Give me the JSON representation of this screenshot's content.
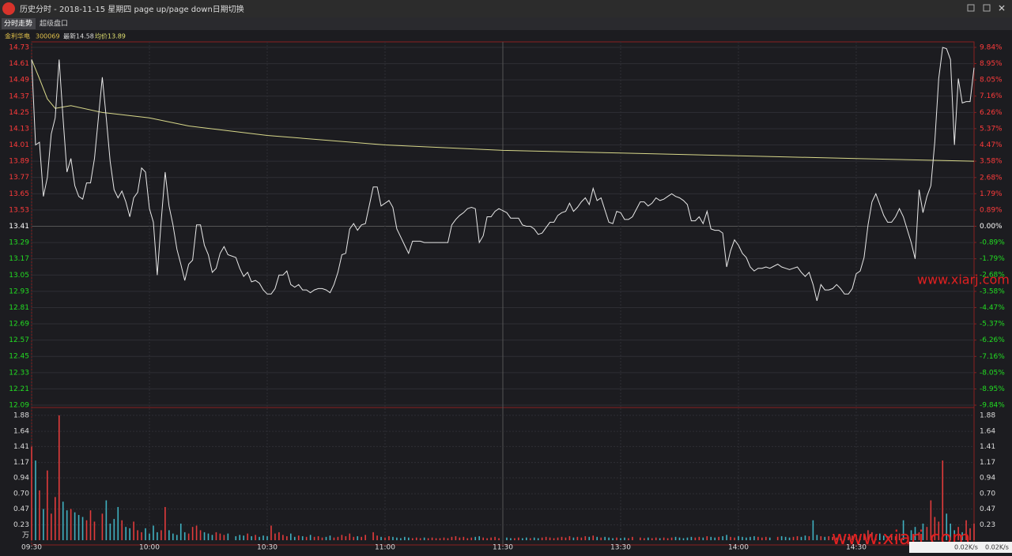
{
  "window": {
    "title": "历史分时 - 2018-11-15 星期四 page up/page down日期切换",
    "tabs": [
      "分时走势",
      "超级盘口"
    ],
    "info": [
      "金利华电",
      "300069",
      "最新14.58",
      "均价13.89"
    ],
    "watermarks": [
      "www.xiarj.com",
      "www.xiarj.com"
    ],
    "net_speed": [
      "0.02K/s",
      "0.02K/s"
    ]
  },
  "chart_data": {
    "type": "line",
    "x": [
      0,
      1,
      2,
      3,
      4,
      5,
      6,
      7,
      8,
      9,
      10,
      11,
      12,
      13,
      14,
      15,
      16,
      18,
      19,
      20,
      21,
      22,
      23,
      24,
      25,
      26,
      27,
      28,
      29,
      30,
      31,
      32,
      33,
      34,
      35,
      36,
      37,
      38,
      39,
      40,
      41,
      42,
      43,
      44,
      45,
      46,
      47,
      48,
      49,
      50,
      52,
      53,
      54,
      55,
      56,
      57,
      58,
      59,
      60,
      61,
      62,
      63,
      64,
      65,
      66,
      67,
      68,
      69,
      70,
      71,
      72,
      73,
      74,
      75,
      76,
      77,
      78,
      79,
      80,
      81,
      82,
      83,
      84,
      85,
      87,
      88,
      89,
      90,
      91,
      92,
      93,
      94,
      95,
      96,
      97,
      98,
      99,
      100,
      101,
      102,
      103,
      104,
      105,
      106,
      107,
      108,
      109,
      110,
      111,
      112,
      113,
      114,
      115,
      116,
      117,
      118,
      119,
      121,
      122,
      123,
      124,
      125,
      126,
      127,
      128,
      129,
      130,
      131,
      132,
      133,
      134,
      135,
      136,
      137,
      138,
      139,
      140,
      141,
      142,
      143,
      144,
      145,
      146,
      147,
      148,
      149,
      150,
      151,
      152,
      153,
      155,
      156,
      157,
      158,
      159,
      160,
      161,
      162,
      163,
      164,
      165,
      166,
      167,
      168,
      169,
      170,
      171,
      172,
      173,
      174,
      175,
      176,
      177,
      178,
      179,
      180,
      181,
      182,
      183,
      184,
      185,
      186,
      187,
      188,
      190,
      191,
      192,
      193,
      194,
      195,
      196,
      197,
      198,
      199,
      200,
      201,
      202,
      203,
      204,
      205,
      206,
      207,
      208,
      209,
      210,
      211,
      212,
      213,
      214,
      215,
      216,
      217,
      218,
      219,
      220,
      221,
      222,
      224,
      225,
      226,
      227,
      228,
      229,
      230,
      231,
      232,
      233,
      234,
      235,
      236,
      237,
      238,
      239,
      240
    ],
    "series": [
      {
        "name": "价格",
        "color": "#e8e8e8",
        "values": [
          14.64,
          14.01,
          14.03,
          13.63,
          13.77,
          14.09,
          14.21,
          14.64,
          14.21,
          13.81,
          13.91,
          13.71,
          13.63,
          13.61,
          13.73,
          13.73,
          13.91,
          14.51,
          14.21,
          13.89,
          13.68,
          13.62,
          13.67,
          13.59,
          13.48,
          13.62,
          13.66,
          13.84,
          13.81,
          13.54,
          13.44,
          13.05,
          13.45,
          13.81,
          13.56,
          13.42,
          13.24,
          13.13,
          13.01,
          13.13,
          13.16,
          13.42,
          13.42,
          13.27,
          13.2,
          13.07,
          13.1,
          13.21,
          13.26,
          13.2,
          13.18,
          13.1,
          13.04,
          13.07,
          13.0,
          13.01,
          12.99,
          12.94,
          12.91,
          12.91,
          12.95,
          13.05,
          13.05,
          13.08,
          12.98,
          12.96,
          12.98,
          12.94,
          12.94,
          12.92,
          12.94,
          12.95,
          12.95,
          12.94,
          12.92,
          12.98,
          13.07,
          13.2,
          13.21,
          13.39,
          13.43,
          13.38,
          13.42,
          13.43,
          13.7,
          13.7,
          13.56,
          13.58,
          13.6,
          13.55,
          13.39,
          13.33,
          13.27,
          13.21,
          13.3,
          13.3,
          13.3,
          13.29,
          13.29,
          13.29,
          13.29,
          13.29,
          13.29,
          13.29,
          13.42,
          13.46,
          13.49,
          13.51,
          13.54,
          13.55,
          13.54,
          13.29,
          13.34,
          13.48,
          13.48,
          13.52,
          13.54,
          13.51,
          13.47,
          13.47,
          13.47,
          13.42,
          13.41,
          13.41,
          13.39,
          13.35,
          13.36,
          13.4,
          13.44,
          13.44,
          13.49,
          13.51,
          13.52,
          13.58,
          13.52,
          13.55,
          13.59,
          13.62,
          13.57,
          13.69,
          13.6,
          13.62,
          13.53,
          13.44,
          13.43,
          13.52,
          13.51,
          13.46,
          13.46,
          13.48,
          13.59,
          13.59,
          13.56,
          13.58,
          13.62,
          13.6,
          13.61,
          13.63,
          13.65,
          13.63,
          13.62,
          13.6,
          13.57,
          13.45,
          13.45,
          13.48,
          13.43,
          13.52,
          13.39,
          13.38,
          13.38,
          13.36,
          13.11,
          13.23,
          13.31,
          13.27,
          13.21,
          13.18,
          13.11,
          13.08,
          13.1,
          13.1,
          13.11,
          13.1,
          13.13,
          13.11,
          13.1,
          13.09,
          13.1,
          13.11,
          13.07,
          13.04,
          13.07,
          12.98,
          12.86,
          12.98,
          12.94,
          12.94,
          12.95,
          12.98,
          12.95,
          12.91,
          12.91,
          12.95,
          13.06,
          13.08,
          13.18,
          13.42,
          13.59,
          13.65,
          13.57,
          13.49,
          13.44,
          13.44,
          13.48,
          13.54,
          13.48,
          13.29,
          13.17,
          13.68,
          13.51,
          13.63,
          13.71,
          14.03,
          14.5,
          14.73,
          14.72,
          14.64,
          14.01,
          14.5,
          14.32,
          14.33,
          14.33,
          14.58
        ]
      },
      {
        "name": "均价",
        "color": "#d8d88a",
        "x": [
          0,
          2,
          4,
          6,
          10,
          18,
          30,
          40,
          60,
          90,
          120,
          150,
          180,
          210,
          240
        ],
        "values": [
          14.64,
          14.5,
          14.35,
          14.28,
          14.3,
          14.25,
          14.21,
          14.15,
          14.08,
          14.01,
          13.97,
          13.95,
          13.93,
          13.91,
          13.89
        ]
      }
    ],
    "baseline": 13.41,
    "ylim": [
      12.09,
      14.73
    ],
    "yticks": [
      14.73,
      14.61,
      14.49,
      14.37,
      14.25,
      14.13,
      14.01,
      13.89,
      13.77,
      13.65,
      13.53,
      13.41,
      13.29,
      13.17,
      13.05,
      12.93,
      12.81,
      12.69,
      12.57,
      12.45,
      12.33,
      12.21,
      12.09
    ],
    "y2lim": [
      -9.84,
      9.84
    ],
    "y2ticks": [
      {
        "value": 9.84,
        "label": "9.84%"
      },
      {
        "value": 8.95,
        "label": "8.95%"
      },
      {
        "value": 8.05,
        "label": "8.05%"
      },
      {
        "value": 7.16,
        "label": "7.16%"
      },
      {
        "value": 6.26,
        "label": "6.26%"
      },
      {
        "value": 5.37,
        "label": "5.37%"
      },
      {
        "value": 4.47,
        "label": "4.47%"
      },
      {
        "value": 3.58,
        "label": "3.58%"
      },
      {
        "value": 2.68,
        "label": "2.68%"
      },
      {
        "value": 1.79,
        "label": "1.79%"
      },
      {
        "value": 0.89,
        "label": "0.89%"
      },
      {
        "value": 0,
        "label": "0.00%"
      },
      {
        "value": -0.89,
        "label": "-0.89%"
      },
      {
        "value": -1.79,
        "label": "-1.79%"
      },
      {
        "value": -2.68,
        "label": "-2.68%"
      },
      {
        "value": -3.58,
        "label": "-3.58%"
      },
      {
        "value": -4.47,
        "label": "-4.47%"
      },
      {
        "value": -5.37,
        "label": "-5.37%"
      },
      {
        "value": -6.26,
        "label": "-6.26%"
      },
      {
        "value": -7.16,
        "label": "-7.16%"
      },
      {
        "value": -8.05,
        "label": "-8.05%"
      },
      {
        "value": -8.95,
        "label": "-8.95%"
      },
      {
        "value": -9.84,
        "label": "-9.84%"
      }
    ],
    "xlim": [
      0,
      240
    ],
    "xticks": [
      {
        "value": 0,
        "label": "09:30"
      },
      {
        "value": 30,
        "label": "10:00"
      },
      {
        "value": 60,
        "label": "10:30"
      },
      {
        "value": 90,
        "label": "11:00"
      },
      {
        "value": 120,
        "label": "11:30"
      },
      {
        "value": 150,
        "label": "13:30"
      },
      {
        "value": 180,
        "label": "14:00"
      },
      {
        "value": 210,
        "label": "14:30"
      }
    ],
    "up_color": "#e23b3b",
    "down_color": "#3fb0c0",
    "volume": {
      "unit": "万",
      "ylim": [
        0,
        1.95
      ],
      "yticks": [
        1.88,
        1.64,
        1.41,
        1.17,
        0.94,
        {
          "value": 0.7,
          "label": "0.70"
        },
        0.47,
        0.23
      ],
      "values": [
        1.41,
        1.2,
        0.75,
        0.47,
        1.05,
        0.4,
        0.65,
        1.88,
        0.58,
        0.45,
        0.47,
        0.42,
        0.38,
        0.35,
        0.3,
        0.45,
        0.28,
        0.4,
        0.6,
        0.25,
        0.32,
        0.5,
        0.3,
        0.2,
        0.18,
        0.28,
        0.15,
        0.12,
        0.18,
        0.1,
        0.22,
        0.12,
        0.15,
        0.5,
        0.15,
        0.1,
        0.08,
        0.25,
        0.12,
        0.1,
        0.2,
        0.22,
        0.15,
        0.12,
        0.1,
        0.08,
        0.12,
        0.1,
        0.08,
        0.1,
        0.06,
        0.08,
        0.07,
        0.1,
        0.06,
        0.08,
        0.05,
        0.07,
        0.06,
        0.22,
        0.1,
        0.12,
        0.08,
        0.06,
        0.1,
        0.05,
        0.07,
        0.06,
        0.05,
        0.08,
        0.05,
        0.06,
        0.04,
        0.05,
        0.07,
        0.04,
        0.05,
        0.08,
        0.06,
        0.1,
        0.05,
        0.06,
        0.05,
        0.08,
        0.12,
        0.07,
        0.05,
        0.04,
        0.06,
        0.05,
        0.04,
        0.03,
        0.05,
        0.04,
        0.03,
        0.04,
        0.03,
        0.04,
        0.03,
        0.04,
        0.03,
        0.03,
        0.04,
        0.03,
        0.05,
        0.06,
        0.04,
        0.05,
        0.03,
        0.04,
        0.05,
        0.06,
        0.04,
        0.03,
        0.04,
        0.05,
        0.03,
        0.04,
        0.03,
        0.03,
        0.04,
        0.03,
        0.04,
        0.03,
        0.04,
        0.03,
        0.04,
        0.05,
        0.04,
        0.03,
        0.04,
        0.05,
        0.04,
        0.06,
        0.04,
        0.05,
        0.04,
        0.06,
        0.05,
        0.07,
        0.05,
        0.04,
        0.05,
        0.04,
        0.03,
        0.04,
        0.03,
        0.04,
        0.03,
        0.05,
        0.04,
        0.03,
        0.04,
        0.03,
        0.04,
        0.03,
        0.04,
        0.03,
        0.04,
        0.05,
        0.04,
        0.03,
        0.04,
        0.05,
        0.04,
        0.05,
        0.04,
        0.06,
        0.05,
        0.04,
        0.05,
        0.06,
        0.08,
        0.05,
        0.04,
        0.06,
        0.05,
        0.04,
        0.05,
        0.06,
        0.05,
        0.04,
        0.05,
        0.04,
        0.05,
        0.06,
        0.05,
        0.04,
        0.05,
        0.06,
        0.05,
        0.07,
        0.06,
        0.3,
        0.08,
        0.06,
        0.05,
        0.06,
        0.05,
        0.04,
        0.05,
        0.06,
        0.05,
        0.07,
        0.08,
        0.06,
        0.1,
        0.15,
        0.12,
        0.08,
        0.1,
        0.07,
        0.06,
        0.08,
        0.06,
        0.1,
        0.3,
        0.15,
        0.2,
        0.12,
        0.25,
        0.2,
        0.6,
        0.35,
        0.28,
        1.2,
        0.4,
        0.25,
        0.15,
        0.2,
        0.12,
        0.3,
        0.18,
        0.25
      ]
    }
  }
}
